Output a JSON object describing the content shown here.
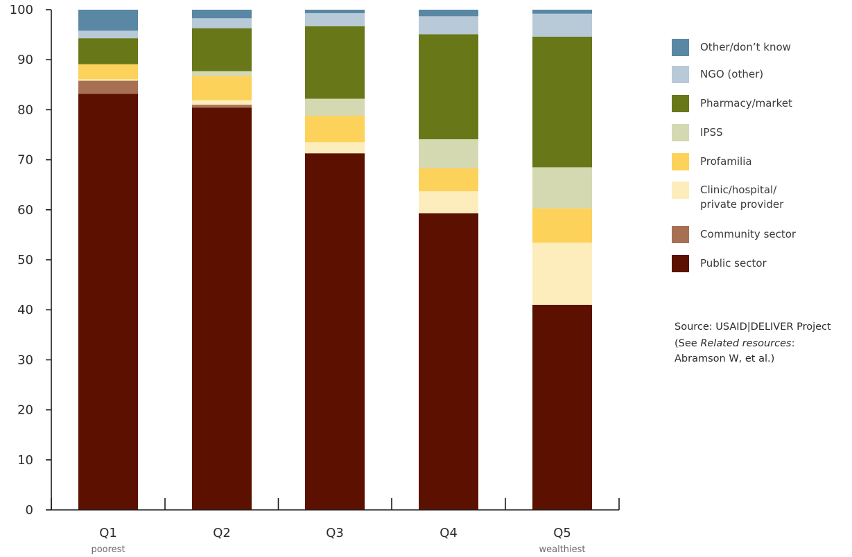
{
  "chart_data": {
    "type": "bar",
    "stacked": true,
    "categories": [
      "Q1",
      "Q2",
      "Q3",
      "Q4",
      "Q5"
    ],
    "category_sublabels": [
      "poorest",
      "",
      "",
      "",
      "wealthiest"
    ],
    "ylim": [
      0,
      100
    ],
    "yticks": [
      0,
      10,
      20,
      30,
      40,
      50,
      60,
      70,
      80,
      90,
      100
    ],
    "legend_position": "right",
    "series": [
      {
        "name": "Public sector",
        "color": "#5c1100",
        "values": [
          83.2,
          80.4,
          71.3,
          59.3,
          41.0
        ]
      },
      {
        "name": "Community sector",
        "color": "#a87052",
        "values": [
          2.6,
          0.6,
          0.0,
          0.0,
          0.0
        ]
      },
      {
        "name": "Clinic/hospital/\nprivate provider",
        "color": "#fdedbc",
        "values": [
          0.3,
          0.9,
          2.2,
          4.4,
          12.4
        ]
      },
      {
        "name": "Profamilia",
        "color": "#fdd25a",
        "values": [
          3.0,
          4.8,
          5.3,
          4.6,
          6.9
        ]
      },
      {
        "name": "IPSS",
        "color": "#d4d9b2",
        "values": [
          0.0,
          1.0,
          3.4,
          5.8,
          8.2
        ]
      },
      {
        "name": "Pharmacy/market",
        "color": "#687819",
        "values": [
          5.2,
          8.6,
          14.5,
          21.0,
          26.1
        ]
      },
      {
        "name": "NGO (other)",
        "color": "#b8c9d7",
        "values": [
          1.5,
          2.0,
          2.6,
          3.6,
          4.6
        ]
      },
      {
        "name": "Other/don’t know",
        "color": "#5987a4",
        "values": [
          4.2,
          1.7,
          0.7,
          1.3,
          0.8
        ]
      }
    ]
  },
  "source": {
    "line1": "Source: USAID|DELIVER Project",
    "ref_prefix": "(See ",
    "ref_italic": "Related resources",
    "ref_suffix": ":",
    "ref_line2": "Abramson W, et al.)"
  }
}
